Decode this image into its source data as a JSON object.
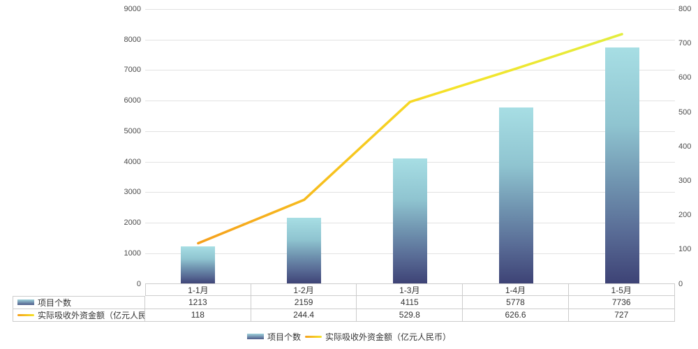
{
  "chart_data": {
    "type": "combo-bar-line",
    "categories": [
      "1-1月",
      "1-2月",
      "1-3月",
      "1-4月",
      "1-5月"
    ],
    "series": [
      {
        "name": "项目个数",
        "type": "bar",
        "axis": "left",
        "values": [
          1213,
          2159,
          4115,
          5778,
          7736
        ]
      },
      {
        "name": "实际吸收外资金额（亿元人民币）",
        "type": "line",
        "axis": "right",
        "values": [
          118,
          244.4,
          529.8,
          626.6,
          727
        ]
      }
    ],
    "left_axis": {
      "min": 0,
      "max": 9000,
      "step": 1000,
      "ticks": [
        0,
        1000,
        2000,
        3000,
        4000,
        5000,
        6000,
        7000,
        8000,
        9000
      ]
    },
    "right_axis": {
      "min": 0,
      "max": 800,
      "step": 100,
      "ticks": [
        0,
        100,
        200,
        300,
        400,
        500,
        600,
        700,
        800
      ]
    },
    "grid": true,
    "legend_position": "bottom",
    "data_table_shown": true
  },
  "legend": {
    "items": [
      {
        "label": "项目个数",
        "swatch": "bar"
      },
      {
        "label": "实际吸收外资金额（亿元人民币）",
        "swatch": "line"
      }
    ]
  },
  "colors": {
    "bar_gradient": [
      "#A7DEE4",
      "#8FC4D0",
      "#7094B0",
      "#596C96",
      "#3D4275"
    ],
    "bar_gradient_stops": [
      0,
      33,
      57,
      78,
      100
    ],
    "line_gradient": [
      "#F5A01D",
      "#F7C51E",
      "#F5E329",
      "#E3ED3E"
    ],
    "line_gradient_stops": [
      0,
      35,
      60,
      100
    ],
    "swatch_bar_top": "#9FD3DC",
    "swatch_bar_bottom": "#4E5A89",
    "gridline": "#E2E2E2",
    "axis_line": "#CCCCCC",
    "table_border": "#CCCCCC",
    "axis_text": "#4A4A4A",
    "table_text": "#333333",
    "background": "#FFFFFF"
  }
}
